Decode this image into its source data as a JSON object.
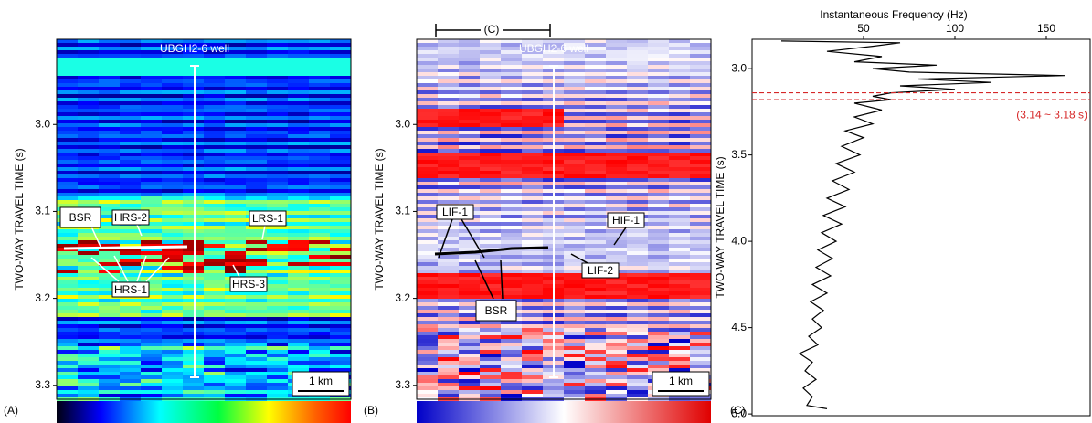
{
  "panels": [
    {
      "label": "(A)",
      "y_label": "TWO-WAY TRAVEL TIME (s)",
      "ylim": [
        2.902,
        3.316
      ],
      "yticks": [
        {
          "value": 3.0,
          "label": "3.0"
        },
        3.1,
        3.2,
        3.3
      ],
      "well_label": "UBGH2-6 well",
      "annotations": [
        "BSR",
        "HRS-2",
        "LRS-1",
        "HRS-1",
        "HRS-3"
      ],
      "scale_bar": "1 km"
    },
    {
      "label": "(B)",
      "y_label": "TWO-WAY TRAVEL TIME (s)",
      "ylim": [
        2.902,
        3.316
      ],
      "yticks": [
        {
          "value": 3.0,
          "label": "3.0"
        },
        3.1,
        3.2,
        3.3
      ],
      "well_label": "UBGH2-6 well",
      "annotations": [
        "LIF-1",
        "HIF-1",
        "LIF-2",
        "BSR"
      ],
      "scale_bar": "1 km",
      "extent_label": "(C)"
    }
  ],
  "chart_data": {
    "type": "line",
    "panel_label": "(C)",
    "x_label": "Instantaneous Frequency (Hz)",
    "y_label": "TWO-WAY TRAVEL TIME (s)",
    "xlim": [
      -11,
      174
    ],
    "xticks": [
      50,
      100,
      150
    ],
    "ylim": [
      2.83,
      5.01
    ],
    "yticks": [
      {
        "value": 3.0,
        "label": "3.0"
      },
      3.5,
      {
        "value": 4.0,
        "label": "4.0"
      },
      4.5,
      {
        "value": 5.0,
        "label": "5.0"
      }
    ],
    "color": "#000000",
    "x": [
      2.84,
      2.85,
      2.87,
      2.9,
      2.93,
      2.96,
      2.98,
      3.0,
      3.02,
      3.04,
      3.06,
      3.08,
      3.1,
      3.12,
      3.14,
      3.16,
      3.18,
      3.2,
      3.24,
      3.28,
      3.32,
      3.36,
      3.4,
      3.45,
      3.5,
      3.55,
      3.6,
      3.65,
      3.7,
      3.75,
      3.8,
      3.85,
      3.9,
      3.95,
      4.0,
      4.05,
      4.1,
      4.15,
      4.2,
      4.25,
      4.3,
      4.35,
      4.4,
      4.45,
      4.5,
      4.55,
      4.6,
      4.65,
      4.7,
      4.75,
      4.8,
      4.85,
      4.9,
      4.95,
      4.97
    ],
    "values": [
      5,
      70,
      55,
      30,
      60,
      45,
      90,
      55,
      75,
      160,
      80,
      120,
      70,
      100,
      65,
      55,
      65,
      45,
      60,
      45,
      55,
      40,
      50,
      38,
      48,
      35,
      45,
      33,
      42,
      30,
      40,
      28,
      38,
      27,
      35,
      25,
      33,
      24,
      32,
      22,
      30,
      21,
      28,
      22,
      27,
      20,
      25,
      15,
      22,
      18,
      24,
      17,
      22,
      19,
      30
    ],
    "dashed_lines": [
      3.14,
      3.18
    ],
    "dashed_color": "#d62728",
    "dashed_label": "(3.14 ~ 3.18 s)"
  }
}
